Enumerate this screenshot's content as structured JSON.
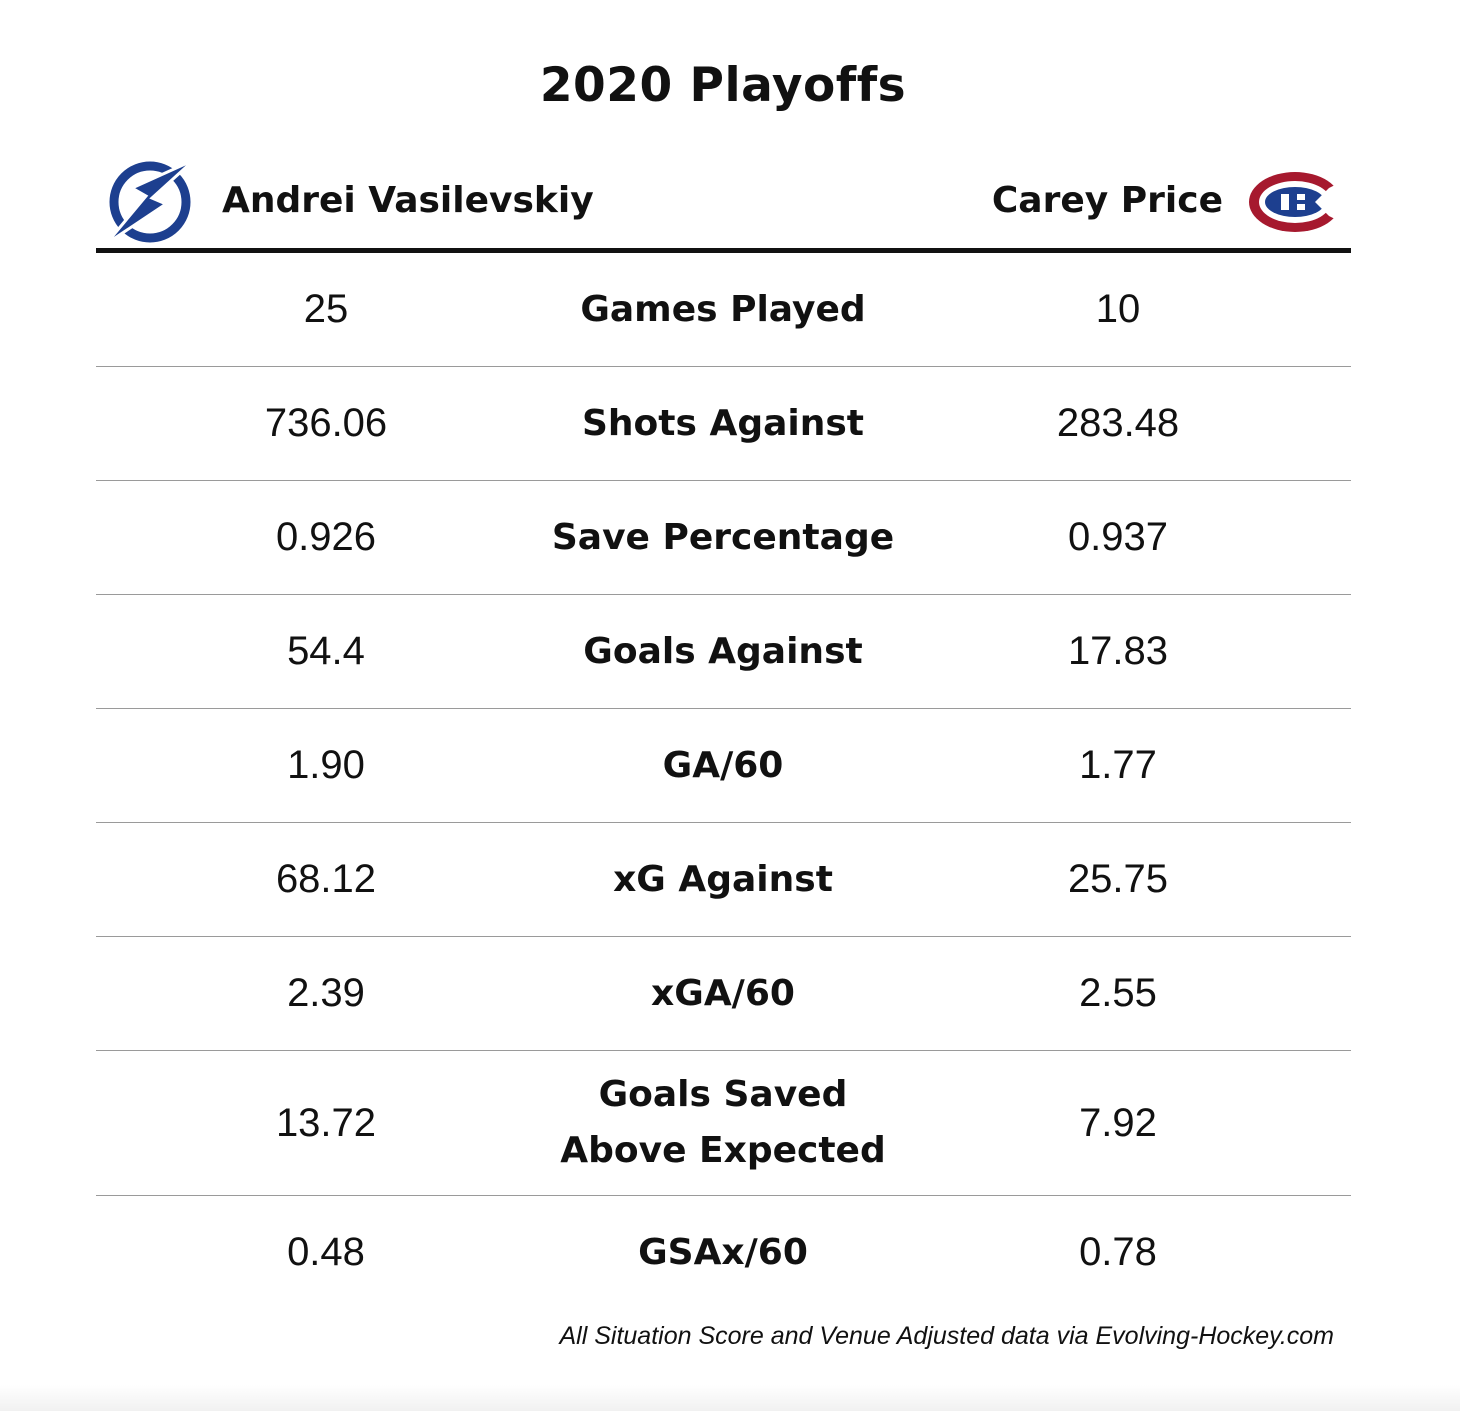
{
  "chart_data": {
    "type": "table",
    "title": "2020 Playoffs",
    "players": [
      {
        "name": "Andrei Vasilevskiy",
        "logo": "lightning-bolt-logo",
        "color": "#1d3f8f"
      },
      {
        "name": "Carey Price",
        "logo": "canadiens-ch-logo",
        "color": "#a6192e"
      }
    ],
    "rows": [
      {
        "metric": "Games Played",
        "left": "25",
        "right": "10"
      },
      {
        "metric": "Shots Against",
        "left": "736.06",
        "right": "283.48"
      },
      {
        "metric": "Save Percentage",
        "left": "0.926",
        "right": "0.937"
      },
      {
        "metric": "Goals Against",
        "left": "54.4",
        "right": "17.83"
      },
      {
        "metric": "GA/60",
        "left": "1.90",
        "right": "1.77"
      },
      {
        "metric": "xG Against",
        "left": "68.12",
        "right": "25.75"
      },
      {
        "metric": "xGA/60",
        "left": "2.39",
        "right": "2.55"
      },
      {
        "metric": "Goals Saved Above Expected",
        "left": "13.72",
        "right": "7.92"
      },
      {
        "metric": "GSAx/60",
        "left": "0.48",
        "right": "0.78"
      }
    ],
    "footnote": "All Situation Score and Venue Adjusted data via Evolving-Hockey.com"
  }
}
